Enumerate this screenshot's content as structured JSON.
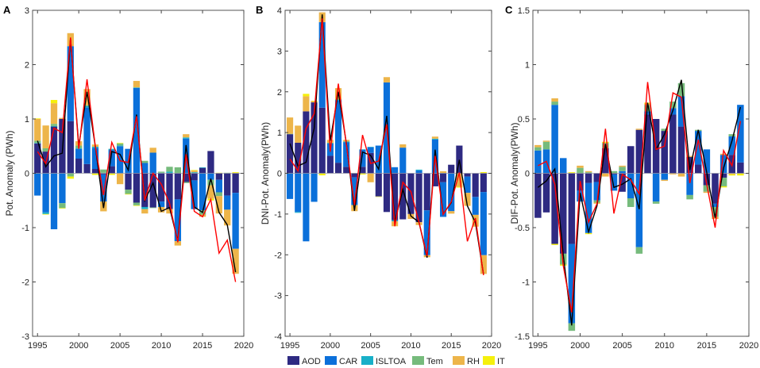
{
  "legend": {
    "items": [
      {
        "name": "AOD",
        "color": "#2e2a82"
      },
      {
        "name": "CAR",
        "color": "#0b70da"
      },
      {
        "name": "ISLTOA",
        "color": "#18b0c8"
      },
      {
        "name": "Tem",
        "color": "#76bb7c"
      },
      {
        "name": "RH",
        "color": "#edb54a"
      },
      {
        "name": "IT",
        "color": "#f5f00c"
      }
    ]
  },
  "chart_data": [
    {
      "type": "bar",
      "stacked": true,
      "panel_label": "A",
      "ylabel": "Pot. Anomaly (PWh)",
      "ylim": [
        -3,
        3
      ],
      "yticks": [
        -3,
        -2,
        -1,
        0,
        1,
        2,
        3
      ],
      "xlim": [
        1994.4,
        2020
      ],
      "xticks": [
        1995,
        2000,
        2005,
        2010,
        2015,
        2020
      ],
      "x": [
        1995,
        1996,
        1997,
        1998,
        1999,
        2000,
        2001,
        2002,
        2003,
        2004,
        2005,
        2006,
        2007,
        2008,
        2009,
        2010,
        2011,
        2012,
        2013,
        2014,
        2015,
        2016,
        2017,
        2018,
        2019
      ],
      "series": [
        {
          "name": "AOD",
          "values": [
            0.55,
            0.4,
            0.86,
            1.0,
            0.96,
            0.27,
            0.17,
            0.08,
            -0.02,
            0.13,
            0,
            -0.3,
            -0.54,
            -0.62,
            -0.63,
            -0.52,
            -0.66,
            -0.48,
            -0.16,
            -0.13,
            0.1,
            0.41,
            -0.12,
            -0.41,
            -0.36
          ]
        },
        {
          "name": "CAR",
          "values": [
            -0.41,
            -0.72,
            -1.03,
            -0.55,
            1.38,
            0.18,
            1.04,
            0.39,
            -0.5,
            0.3,
            0.5,
            0.45,
            1.57,
            0.19,
            0.38,
            -0.1,
            0,
            -0.77,
            0.64,
            -0.53,
            -0.68,
            -0.12,
            -0.23,
            -0.26,
            -1.03
          ]
        },
        {
          "name": "ISLTOA",
          "values": [
            0.01,
            -0.03,
            0.01,
            0,
            0,
            0.01,
            0.03,
            0.02,
            0.01,
            0.02,
            0.01,
            0,
            0.01,
            -0.04,
            0,
            0.01,
            0.03,
            0,
            0.02,
            0.02,
            0.01,
            0,
            0,
            0,
            0
          ]
        },
        {
          "name": "Tem",
          "values": [
            0.04,
            0.06,
            0.04,
            -0.09,
            -0.06,
            0.05,
            0.01,
            0,
            0.06,
            0,
            0.04,
            -0.08,
            -0.05,
            0.04,
            -0.01,
            0.02,
            0.09,
            0.11,
            -0.02,
            0,
            -0.08,
            -0.1,
            -0.07,
            0.01,
            0
          ]
        },
        {
          "name": "RH",
          "values": [
            0.4,
            0.42,
            0.38,
            0.02,
            0.24,
            0.08,
            0.3,
            0.04,
            -0.18,
            0,
            -0.2,
            0,
            0.12,
            -0.08,
            0.09,
            -0.1,
            -0.08,
            -0.08,
            0.06,
            0.03,
            -0.04,
            -0.25,
            -0.32,
            -0.29,
            -0.46
          ]
        },
        {
          "name": "IT",
          "values": [
            0.01,
            -0.01,
            0.06,
            -0.01,
            -0.04,
            0,
            0,
            -0.03,
            0,
            -0.03,
            0.01,
            -0.01,
            -0.01,
            0,
            0,
            0,
            0,
            0,
            0,
            0.01,
            0,
            -0.03,
            0.01,
            0,
            0.02
          ]
        }
      ],
      "lines": [
        {
          "color": "#000000",
          "values": [
            0.6,
            0.12,
            0.32,
            0.37,
            2.48,
            0.5,
            1.5,
            0.5,
            -0.64,
            0.4,
            0.35,
            0.06,
            1.08,
            -0.5,
            -0.18,
            -0.7,
            -0.63,
            -1.25,
            0.52,
            -0.62,
            -0.72,
            -0.1,
            -0.72,
            -0.95,
            -1.82
          ]
        },
        {
          "color": "#ff0000",
          "values": [
            0.4,
            0.18,
            0.83,
            0.75,
            2.5,
            0.45,
            1.73,
            0.5,
            -0.4,
            0.57,
            0.23,
            0.2,
            1.05,
            -0.5,
            0,
            -0.2,
            -0.55,
            -1.27,
            0.35,
            -0.7,
            -0.8,
            -0.48,
            -1.47,
            -1.23,
            -2.0
          ]
        }
      ]
    },
    {
      "type": "bar",
      "stacked": true,
      "panel_label": "B",
      "ylabel": "DNI-Pot. Anomaly(PWh)",
      "ylim": [
        -4,
        4
      ],
      "yticks": [
        -4,
        -3,
        -2,
        -1,
        0,
        1,
        2,
        3,
        4
      ],
      "xlim": [
        1994.4,
        2020
      ],
      "xticks": [
        1995,
        2000,
        2005,
        2010,
        2015,
        2020
      ],
      "x": [
        1995,
        1996,
        1997,
        1998,
        1999,
        2000,
        2001,
        2002,
        2003,
        2004,
        2005,
        2006,
        2007,
        2008,
        2009,
        2010,
        2011,
        2012,
        2013,
        2014,
        2015,
        2016,
        2017,
        2018,
        2019
      ],
      "series": [
        {
          "name": "AOD",
          "values": [
            0.96,
            0.75,
            1.52,
            1.74,
            1.61,
            0.43,
            0.26,
            0.16,
            -0.1,
            0.16,
            0.5,
            -0.57,
            -0.95,
            -1.15,
            -1.13,
            -1.0,
            -1.2,
            -0.91,
            -0.32,
            -0.22,
            0.21,
            0.68,
            -0.08,
            -0.58,
            -0.46
          ]
        },
        {
          "name": "CAR",
          "values": [
            -0.63,
            -0.95,
            -1.67,
            -0.7,
            2.1,
            0.3,
            1.53,
            0.6,
            -0.68,
            0.42,
            0.14,
            0.68,
            2.23,
            0.15,
            0.63,
            0,
            0.07,
            -1.1,
            0.83,
            -0.85,
            -0.93,
            0,
            -0.4,
            -0.44,
            -1.55
          ]
        },
        {
          "name": "ISLTOA",
          "values": [
            0,
            -0.02,
            0,
            0,
            0,
            0.01,
            0.02,
            0.02,
            0,
            0.01,
            0.01,
            0,
            0,
            -0.03,
            0,
            0,
            0.02,
            0,
            0.02,
            0.01,
            0,
            0,
            0,
            0,
            0
          ]
        },
        {
          "name": "Tem",
          "values": [
            0.01,
            0,
            0,
            0,
            0,
            0.01,
            0,
            0,
            0.01,
            0,
            0,
            0,
            0,
            0,
            0,
            0,
            0,
            0,
            0,
            0,
            0,
            0,
            0,
            0,
            0
          ]
        },
        {
          "name": "RH",
          "values": [
            0.4,
            0.42,
            0.37,
            0.03,
            0.24,
            0.07,
            0.28,
            0.04,
            -0.15,
            0,
            -0.22,
            0,
            0.13,
            -0.12,
            0.08,
            -0.12,
            -0.07,
            -0.05,
            0.05,
            0.04,
            -0.06,
            -0.33,
            -0.32,
            -0.29,
            -0.46
          ]
        },
        {
          "name": "IT",
          "values": [
            0,
            0,
            0.06,
            0.01,
            -0.05,
            0,
            0,
            0,
            0,
            -0.03,
            0,
            -0.01,
            0,
            0,
            0,
            0,
            0,
            0,
            0,
            0,
            0,
            -0.02,
            0,
            0,
            0.03
          ]
        }
      ],
      "lines": [
        {
          "color": "#000000",
          "values": [
            0.73,
            0.18,
            0.27,
            1.1,
            3.9,
            0.8,
            2.0,
            0.73,
            -0.92,
            0.52,
            0.44,
            0.1,
            1.41,
            -1.2,
            -0.4,
            -1.05,
            -1.2,
            -2.07,
            0.58,
            -1.0,
            -0.72,
            0.33,
            -0.8,
            -1.21,
            -2.48
          ]
        },
        {
          "color": "#ff0000",
          "values": [
            0.35,
            0.06,
            1.1,
            1.46,
            3.8,
            0.53,
            2.2,
            0.7,
            -0.78,
            0.94,
            0.24,
            0.3,
            1.2,
            -1.3,
            -0.22,
            -0.45,
            -1.2,
            -2.03,
            0.43,
            -1.01,
            -0.7,
            0.02,
            -1.67,
            -1.1,
            -2.5
          ]
        }
      ]
    },
    {
      "type": "bar",
      "stacked": true,
      "panel_label": "C",
      "ylabel": "DIF-Pot. Anomaly(PWh)",
      "ylim": [
        -1.5,
        1.5
      ],
      "yticks": [
        -1.5,
        -1,
        -0.5,
        0,
        0.5,
        1,
        1.5
      ],
      "xlim": [
        1994.4,
        2020
      ],
      "xticks": [
        1995,
        2000,
        2005,
        2010,
        2015,
        2020
      ],
      "x": [
        1995,
        1996,
        1997,
        1998,
        1999,
        2000,
        2001,
        2002,
        2003,
        2004,
        2005,
        2006,
        2007,
        2008,
        2009,
        2010,
        2011,
        2012,
        2013,
        2014,
        2015,
        2016,
        2017,
        2018,
        2019
      ],
      "series": [
        {
          "name": "AOD",
          "values": [
            -0.41,
            -0.36,
            -0.65,
            -0.74,
            -0.65,
            -0.16,
            -0.09,
            -0.08,
            0.23,
            -0.01,
            -0.17,
            0.25,
            0.4,
            0.54,
            0.5,
            0.39,
            0.54,
            0.43,
            0.15,
            0.08,
            -0.11,
            -0.28,
            -0.04,
            0.17,
            0.1
          ]
        },
        {
          "name": "CAR",
          "values": [
            0.21,
            0.22,
            0.63,
            0.14,
            -0.73,
            -0.1,
            -0.46,
            -0.17,
            0,
            -0.15,
            0.02,
            -0.23,
            -0.68,
            0.03,
            -0.26,
            -0.06,
            0.06,
            0.28,
            -0.2,
            0.31,
            0.22,
            -0.03,
            0.17,
            0.17,
            0.53
          ]
        },
        {
          "name": "ISLTOA",
          "values": [
            0,
            0,
            0,
            0,
            0,
            0,
            0,
            0,
            0,
            0,
            0,
            0,
            0,
            0,
            0,
            0,
            0,
            0,
            0,
            0,
            0,
            0,
            0,
            0,
            0
          ]
        },
        {
          "name": "Tem",
          "values": [
            0.03,
            0.07,
            0.03,
            -0.1,
            -0.07,
            0.05,
            0.01,
            -0.02,
            0.05,
            0.02,
            0.04,
            -0.08,
            -0.06,
            0.06,
            -0.02,
            0.02,
            0.06,
            0.12,
            -0.04,
            0.01,
            -0.06,
            -0.09,
            -0.08,
            0.02,
            0
          ]
        },
        {
          "name": "RH",
          "values": [
            0.02,
            0.01,
            0.03,
            0,
            0,
            0.02,
            0.01,
            -0.01,
            -0.03,
            0,
            0.01,
            0,
            0.01,
            0.01,
            0,
            -0.01,
            -0.01,
            -0.03,
            0.01,
            0,
            -0.01,
            -0.02,
            0.01,
            -0.01,
            0
          ]
        },
        {
          "name": "IT",
          "values": [
            0,
            0,
            -0.01,
            -0.01,
            0.01,
            0,
            -0.01,
            0,
            0.01,
            0,
            0,
            0,
            0,
            0.01,
            0,
            0,
            0,
            0,
            0,
            0,
            0,
            0,
            -0.01,
            -0.01,
            -0.02
          ]
        }
      ],
      "lines": [
        {
          "color": "#000000",
          "values": [
            -0.13,
            -0.07,
            0.04,
            -0.75,
            -1.4,
            -0.18,
            -0.54,
            -0.3,
            0.27,
            -0.13,
            -0.1,
            -0.05,
            -0.33,
            0.65,
            0.22,
            0.36,
            0.58,
            0.86,
            0.03,
            0.4,
            0.01,
            -0.41,
            0.05,
            0.3,
            0.61
          ]
        },
        {
          "color": "#ff0000",
          "values": [
            0.07,
            0.11,
            -0.1,
            -0.85,
            -1.28,
            -0.07,
            -0.45,
            -0.28,
            0.41,
            -0.37,
            -0.01,
            -0.06,
            -0.19,
            0.84,
            0.22,
            0.25,
            0.74,
            0.7,
            -0.09,
            0.31,
            -0.1,
            -0.5,
            0.21,
            0.07,
            0.48
          ]
        }
      ]
    }
  ]
}
